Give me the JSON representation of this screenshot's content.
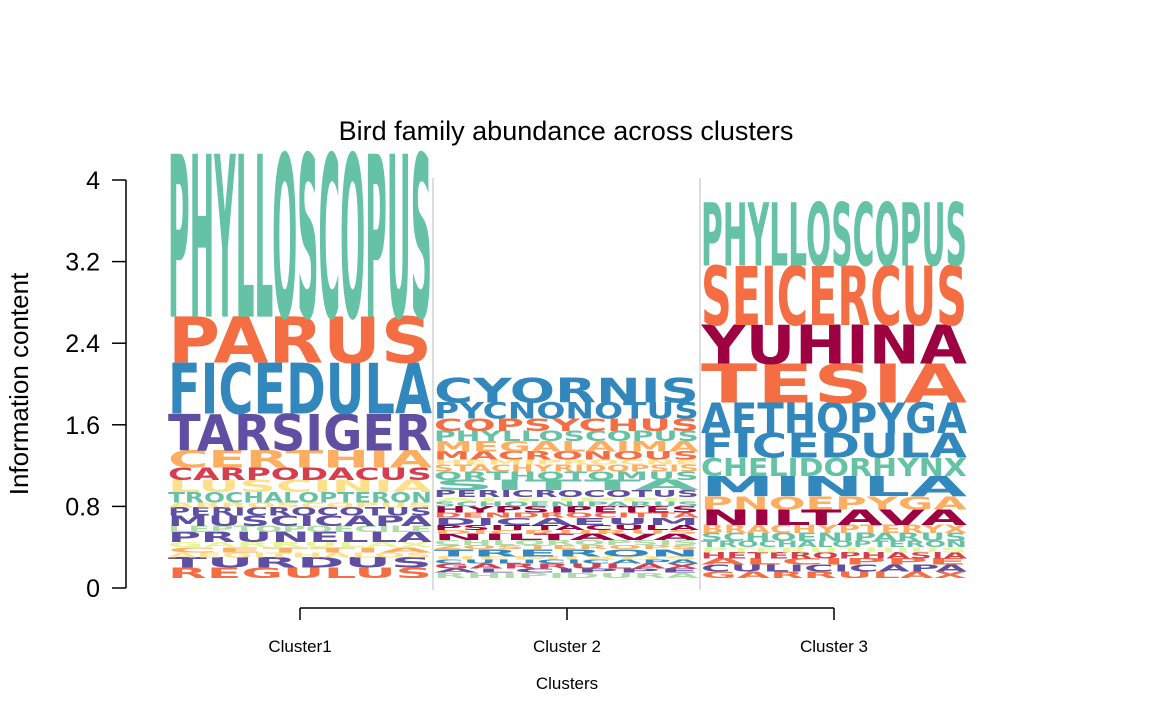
{
  "chart_data": {
    "type": "sequence-logo",
    "title": "Bird family abundance across clusters",
    "xlabel": "Clusters",
    "ylabel": "Information content",
    "ylim": [
      0,
      4
    ],
    "yticks": [
      "0",
      "0.8",
      "1.6",
      "2.4",
      "3.2",
      "4"
    ],
    "ytick_values": [
      0,
      0.8,
      1.6,
      2.4,
      3.2,
      4
    ],
    "grid": false,
    "clusters": [
      {
        "name": "Cluster1",
        "stack": [
          {
            "label": "REGULUS",
            "value": 0.1,
            "color": "#F46D43"
          },
          {
            "label": "TURDUS",
            "value": 0.1,
            "color": "#5E4FA2"
          },
          {
            "label": "AEGITHALOS",
            "value": 0.05,
            "color": "#FEE08B"
          },
          {
            "label": "CETTIA",
            "value": 0.05,
            "color": "#FDAE61"
          },
          {
            "label": "GARRULAX",
            "value": 0.05,
            "color": "#E6F598"
          },
          {
            "label": "PRUNELLA",
            "value": 0.1,
            "color": "#5E4FA2"
          },
          {
            "label": "LEPTOPOECILE",
            "value": 0.06,
            "color": "#ABDDA4"
          },
          {
            "label": "MUSCICAPA",
            "value": 0.1,
            "color": "#5E4FA2"
          },
          {
            "label": "PERICROCOTUS",
            "value": 0.08,
            "color": "#5E4FA2"
          },
          {
            "label": "ABROSCOPUS",
            "value": 0.05,
            "color": "#FEE08B"
          },
          {
            "label": "TROCHALOPTERON",
            "value": 0.1,
            "color": "#66C2A5"
          },
          {
            "label": "LUSCINIA",
            "value": 0.12,
            "color": "#FEE08B"
          },
          {
            "label": "CARPODACUS",
            "value": 0.12,
            "color": "#D53E4F"
          },
          {
            "label": "CERTHIA",
            "value": 0.17,
            "color": "#FDAE61"
          },
          {
            "label": "TARSIGER",
            "value": 0.36,
            "color": "#5E4FA2"
          },
          {
            "label": "FICEDULA",
            "value": 0.5,
            "color": "#3288BD"
          },
          {
            "label": "PARUS",
            "value": 0.45,
            "color": "#F46D43"
          },
          {
            "label": "PHYLLOSCOPUS",
            "value": 1.6,
            "color": "#66C2A5"
          }
        ]
      },
      {
        "name": "Cluster 2",
        "stack": [
          {
            "label": "RHIPIDURA",
            "value": 0.05,
            "color": "#ABDDA4"
          },
          {
            "label": "ALCIPPE",
            "value": 0.04,
            "color": "#5E4FA2"
          },
          {
            "label": "GARRULAX",
            "value": 0.05,
            "color": "#D53E4F"
          },
          {
            "label": "CULICICAPA",
            "value": 0.04,
            "color": "#3288BD"
          },
          {
            "label": "HEMIXOS",
            "value": 0.03,
            "color": "#FEE08B"
          },
          {
            "label": "TRERON",
            "value": 0.07,
            "color": "#3288BD"
          },
          {
            "label": "ZOSTEROPS",
            "value": 0.04,
            "color": "#FDAE61"
          },
          {
            "label": "CHLOROPSIS",
            "value": 0.05,
            "color": "#ABDDA4"
          },
          {
            "label": "NILTAVA",
            "value": 0.06,
            "color": "#9E0142"
          },
          {
            "label": "DICRURUS",
            "value": 0.04,
            "color": "#FDAE61"
          },
          {
            "label": "PSITTACULA",
            "value": 0.05,
            "color": "#9E0142"
          },
          {
            "label": "DICAEUM",
            "value": 0.07,
            "color": "#5E4FA2"
          },
          {
            "label": "DENDROCITTA",
            "value": 0.05,
            "color": "#F46D43"
          },
          {
            "label": "HYPSIPETES",
            "value": 0.06,
            "color": "#9E0142"
          },
          {
            "label": "SCHOENIPARUS",
            "value": 0.05,
            "color": "#66C2A5"
          },
          {
            "label": "ALCIPPE",
            "value": 0.04,
            "color": "#E6F598"
          },
          {
            "label": "PERICROCOTUS",
            "value": 0.07,
            "color": "#5E4FA2"
          },
          {
            "label": "SITTA",
            "value": 0.1,
            "color": "#66C2A5"
          },
          {
            "label": "ORTHOTOMUS",
            "value": 0.08,
            "color": "#66C2A5"
          },
          {
            "label": "STACHYRIDOPSIS",
            "value": 0.07,
            "color": "#FDAE61"
          },
          {
            "label": "HEMIPROCNE",
            "value": 0.05,
            "color": "#FEE08B"
          },
          {
            "label": "MACRONOUS",
            "value": 0.08,
            "color": "#F46D43"
          },
          {
            "label": "MEGALAIMA",
            "value": 0.1,
            "color": "#FDAE61"
          },
          {
            "label": "PHYLLOSCOPUS",
            "value": 0.1,
            "color": "#66C2A5"
          },
          {
            "label": "COPSYCHUS",
            "value": 0.12,
            "color": "#F46D43"
          },
          {
            "label": "PYCNONOTUS",
            "value": 0.16,
            "color": "#3288BD"
          },
          {
            "label": "CYORNIS",
            "value": 0.24,
            "color": "#3288BD"
          }
        ]
      },
      {
        "name": "Cluster 3",
        "stack": [
          {
            "label": "GARRULAX",
            "value": 0.06,
            "color": "#F46D43"
          },
          {
            "label": "CULICICAPA",
            "value": 0.07,
            "color": "#5E4FA2"
          },
          {
            "label": "ALCIPPE",
            "value": 0.06,
            "color": "#F46D43"
          },
          {
            "label": "HETEROPHASIA",
            "value": 0.06,
            "color": "#D53E4F"
          },
          {
            "label": "PTERUTHIUS",
            "value": 0.05,
            "color": "#E6F598"
          },
          {
            "label": "TROCHALOPTERON",
            "value": 0.06,
            "color": "#66C2A5"
          },
          {
            "label": "SCHOENIPARUS",
            "value": 0.08,
            "color": "#66C2A5"
          },
          {
            "label": "BRACHYPTERYX",
            "value": 0.08,
            "color": "#FDAE61"
          },
          {
            "label": "NILTAVA",
            "value": 0.15,
            "color": "#9E0142"
          },
          {
            "label": "PNOEPYGA",
            "value": 0.13,
            "color": "#FDAE61"
          },
          {
            "label": "MINLA",
            "value": 0.2,
            "color": "#3288BD"
          },
          {
            "label": "CHELIDORHYNX",
            "value": 0.18,
            "color": "#66C2A5"
          },
          {
            "label": "FICEDULA",
            "value": 0.24,
            "color": "#3288BD"
          },
          {
            "label": "AETHOPYGA",
            "value": 0.3,
            "color": "#3288BD"
          },
          {
            "label": "TESIA",
            "value": 0.38,
            "color": "#F46D43"
          },
          {
            "label": "YUHINA",
            "value": 0.38,
            "color": "#9E0142"
          },
          {
            "label": "SEICERCUS",
            "value": 0.58,
            "color": "#F46D43"
          },
          {
            "label": "PHYLLOSCOPUS",
            "value": 0.62,
            "color": "#66C2A5"
          }
        ]
      }
    ]
  }
}
